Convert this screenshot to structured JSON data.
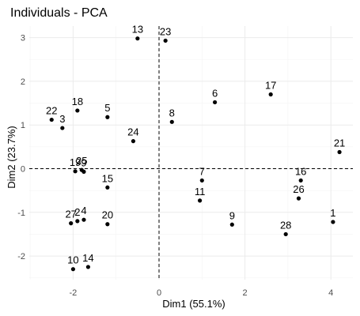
{
  "chart_data": {
    "type": "scatter",
    "title": "Individuals - PCA",
    "xlabel": "Dim1 (55.1%)",
    "ylabel": "Dim2 (23.7%)",
    "xlim": [
      -2.65,
      4.35
    ],
    "ylim": [
      -2.55,
      3.2
    ],
    "x_ticks": [
      -2,
      0,
      2,
      4
    ],
    "y_ticks": [
      -2,
      -1,
      0,
      1,
      2,
      3
    ],
    "grid": true,
    "reference_lines": {
      "x": 0,
      "y": 0,
      "style": "dashed"
    },
    "points": [
      {
        "label": "13",
        "x": -0.5,
        "y": 2.98
      },
      {
        "label": "23",
        "x": 0.15,
        "y": 2.93
      },
      {
        "label": "17",
        "x": 2.6,
        "y": 1.7
      },
      {
        "label": "6",
        "x": 1.3,
        "y": 1.52
      },
      {
        "label": "18",
        "x": -1.9,
        "y": 1.33
      },
      {
        "label": "22",
        "x": -2.5,
        "y": 1.12
      },
      {
        "label": "3",
        "x": -2.25,
        "y": 0.93
      },
      {
        "label": "5",
        "x": -1.2,
        "y": 1.18
      },
      {
        "label": "8",
        "x": 0.3,
        "y": 1.07
      },
      {
        "label": "24",
        "x": -0.6,
        "y": 0.63
      },
      {
        "label": "21",
        "x": 4.2,
        "y": 0.38
      },
      {
        "label": "19",
        "x": -1.95,
        "y": -0.06
      },
      {
        "label": "25",
        "x": -1.8,
        "y": -0.03
      },
      {
        "label": "9",
        "x": -1.75,
        "y": -0.07
      },
      {
        "label": "7",
        "x": 1.0,
        "y": -0.27
      },
      {
        "label": "16",
        "x": 3.3,
        "y": -0.27
      },
      {
        "label": "15",
        "x": -1.2,
        "y": -0.43
      },
      {
        "label": "26",
        "x": 3.25,
        "y": -0.68
      },
      {
        "label": "11",
        "x": 0.95,
        "y": -0.73
      },
      {
        "label": "27",
        "x": -2.05,
        "y": -1.25
      },
      {
        "label": "2",
        "x": -1.9,
        "y": -1.2
      },
      {
        "label": "4",
        "x": -1.75,
        "y": -1.17
      },
      {
        "label": "20",
        "x": -1.2,
        "y": -1.27
      },
      {
        "label": "9",
        "x": 1.7,
        "y": -1.28
      },
      {
        "label": "1",
        "x": 4.05,
        "y": -1.22
      },
      {
        "label": "28",
        "x": 2.95,
        "y": -1.5
      },
      {
        "label": "10",
        "x": -2.0,
        "y": -2.3
      },
      {
        "label": "14",
        "x": -1.65,
        "y": -2.25
      }
    ]
  }
}
